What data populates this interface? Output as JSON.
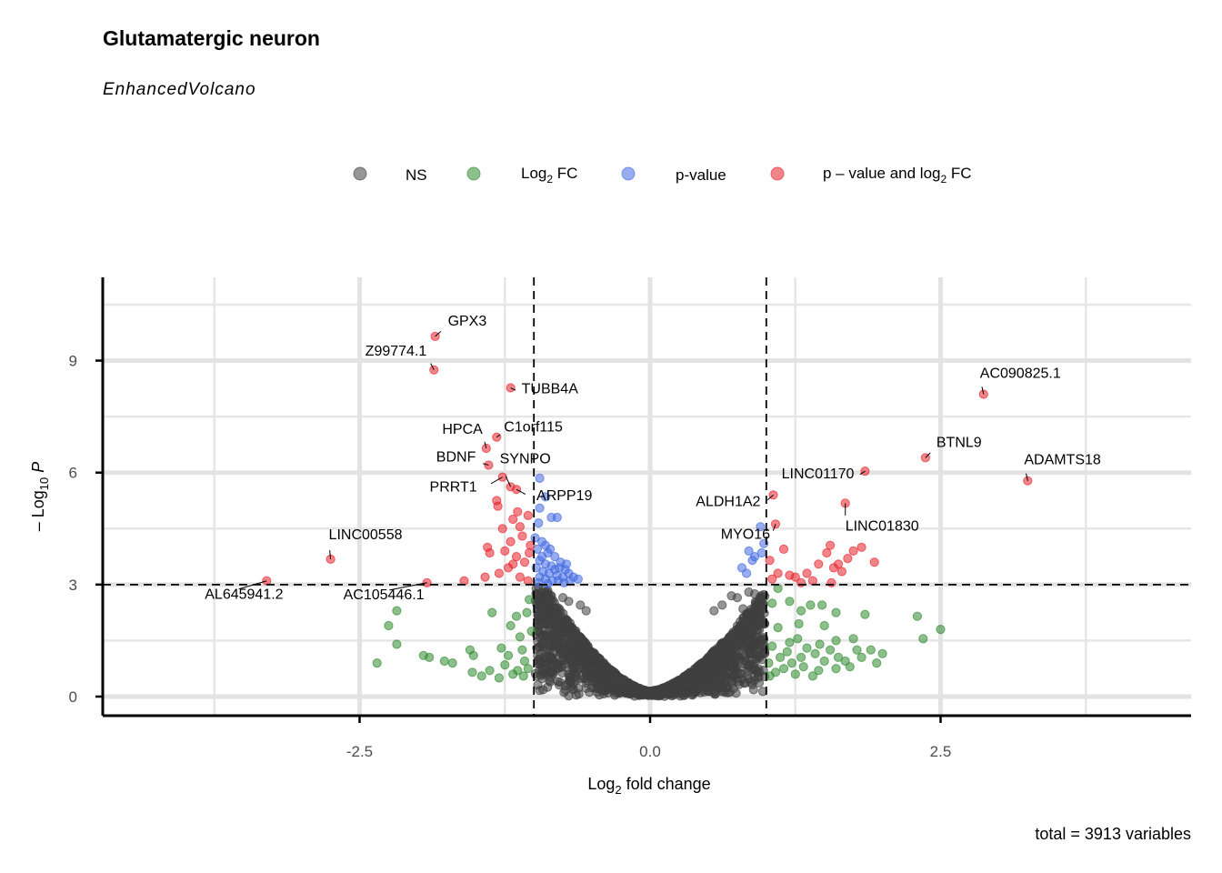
{
  "chart_data": {
    "type": "scatter",
    "title": "Glutamatergic neuron",
    "subtitle": "EnhancedVolcano",
    "xlabel": "Log2 fold change",
    "ylabel": "-Log10 P",
    "caption": "total = 3913 variables",
    "xlim": [
      -4.7,
      4.7
    ],
    "ylim": [
      -0.2,
      11.1
    ],
    "x_ticks": [
      "-2.5",
      "0.0",
      "2.5"
    ],
    "y_ticks": [
      "0",
      "3",
      "6",
      "9"
    ],
    "grid": true,
    "fc_cutoff": 1,
    "p_cutoff_log10": 3,
    "legend_position": "top",
    "legend": [
      {
        "key": "NS",
        "label": "NS",
        "color": "#3f3f3f"
      },
      {
        "key": "FC",
        "label": "Log2 FC",
        "color": "#2e8b2e"
      },
      {
        "key": "P",
        "label": "p-value",
        "color": "#4169e1"
      },
      {
        "key": "P_FC",
        "label": "p – value and log2 FC",
        "color": "#e8202a"
      }
    ],
    "labeled_points": [
      {
        "label": "GPX3",
        "x": -1.85,
        "y": 9.65
      },
      {
        "label": "Z99774.1",
        "x": -1.86,
        "y": 8.75
      },
      {
        "label": "TUBB4A",
        "x": -1.2,
        "y": 8.27
      },
      {
        "label": "C1orf115",
        "x": -1.32,
        "y": 6.95
      },
      {
        "label": "HPCA",
        "x": -1.41,
        "y": 6.65
      },
      {
        "label": "BDNF",
        "x": -1.39,
        "y": 6.2
      },
      {
        "label": "SYNPO",
        "x": -1.2,
        "y": 5.62
      },
      {
        "label": "PRRT1",
        "x": -1.27,
        "y": 5.88
      },
      {
        "label": "ARPP19",
        "x": -1.15,
        "y": 5.55
      },
      {
        "label": "LINC00558",
        "x": -2.75,
        "y": 3.68
      },
      {
        "label": "AL645941.2",
        "x": -3.3,
        "y": 3.1
      },
      {
        "label": "AC105446.1",
        "x": -1.92,
        "y": 3.05
      },
      {
        "label": "AC090825.1",
        "x": 2.87,
        "y": 8.1
      },
      {
        "label": "BTNL9",
        "x": 2.37,
        "y": 6.4
      },
      {
        "label": "ADAMTS18",
        "x": 3.25,
        "y": 5.78
      },
      {
        "label": "LINC01170",
        "x": 1.85,
        "y": 6.04
      },
      {
        "label": "LINC01830",
        "x": 1.68,
        "y": 5.18
      },
      {
        "label": "ALDH1A2",
        "x": 1.06,
        "y": 5.4
      },
      {
        "label": "MYO16",
        "x": 1.08,
        "y": 4.62
      }
    ],
    "series": [
      {
        "name": "p – value and log2 FC",
        "key": "P_FC",
        "points": [
          [
            -1.85,
            9.65
          ],
          [
            -1.86,
            8.75
          ],
          [
            -1.2,
            8.27
          ],
          [
            -1.32,
            6.95
          ],
          [
            -1.41,
            6.65
          ],
          [
            -1.39,
            6.2
          ],
          [
            -1.27,
            5.88
          ],
          [
            -1.2,
            5.62
          ],
          [
            -1.15,
            5.55
          ],
          [
            -2.75,
            3.68
          ],
          [
            -3.3,
            3.1
          ],
          [
            -1.92,
            3.05
          ],
          [
            -1.32,
            5.25
          ],
          [
            -1.31,
            5.1
          ],
          [
            -1.18,
            4.75
          ],
          [
            -1.12,
            4.55
          ],
          [
            -1.05,
            4.85
          ],
          [
            -1.1,
            4.3
          ],
          [
            -1.2,
            4.15
          ],
          [
            -1.4,
            4.0
          ],
          [
            -1.38,
            3.85
          ],
          [
            -1.25,
            3.9
          ],
          [
            -1.15,
            3.75
          ],
          [
            -1.08,
            3.6
          ],
          [
            -1.22,
            3.45
          ],
          [
            -1.3,
            3.3
          ],
          [
            -1.42,
            3.2
          ],
          [
            -1.6,
            3.1
          ],
          [
            -1.12,
            3.2
          ],
          [
            -1.05,
            3.1
          ],
          [
            -1.18,
            3.55
          ],
          [
            -1.27,
            4.5
          ],
          [
            -1.03,
            4.05
          ],
          [
            -1.14,
            4.95
          ],
          [
            -1.04,
            3.85
          ],
          [
            2.87,
            8.1
          ],
          [
            2.37,
            6.4
          ],
          [
            3.25,
            5.78
          ],
          [
            1.85,
            6.04
          ],
          [
            1.68,
            5.18
          ],
          [
            1.06,
            5.4
          ],
          [
            1.08,
            4.62
          ],
          [
            1.03,
            3.65
          ],
          [
            1.15,
            3.95
          ],
          [
            1.1,
            3.3
          ],
          [
            1.2,
            3.25
          ],
          [
            1.35,
            3.3
          ],
          [
            1.45,
            3.55
          ],
          [
            1.52,
            3.85
          ],
          [
            1.55,
            4.05
          ],
          [
            1.62,
            3.55
          ],
          [
            1.7,
            3.7
          ],
          [
            1.75,
            3.9
          ],
          [
            1.82,
            4.0
          ],
          [
            1.93,
            3.6
          ],
          [
            1.58,
            3.45
          ],
          [
            1.4,
            3.1
          ],
          [
            1.05,
            3.15
          ],
          [
            1.25,
            3.2
          ],
          [
            1.65,
            3.35
          ],
          [
            1.3,
            3.05
          ],
          [
            1.56,
            3.05
          ]
        ]
      },
      {
        "name": "p-value",
        "key": "P",
        "points": [
          [
            -0.95,
            5.85
          ],
          [
            -0.9,
            5.35
          ],
          [
            -0.95,
            5.05
          ],
          [
            -0.85,
            4.8
          ],
          [
            -0.8,
            4.8
          ],
          [
            -0.96,
            4.65
          ],
          [
            -0.93,
            4.15
          ],
          [
            -0.9,
            4.05
          ],
          [
            -0.97,
            3.95
          ],
          [
            -0.88,
            3.85
          ],
          [
            -0.82,
            3.75
          ],
          [
            -0.95,
            3.65
          ],
          [
            -0.9,
            3.55
          ],
          [
            -0.85,
            3.5
          ],
          [
            -0.78,
            3.45
          ],
          [
            -0.73,
            3.4
          ],
          [
            -0.98,
            3.45
          ],
          [
            -0.92,
            3.35
          ],
          [
            -0.87,
            3.3
          ],
          [
            -0.8,
            3.25
          ],
          [
            -0.75,
            3.2
          ],
          [
            -0.7,
            3.3
          ],
          [
            -0.66,
            3.2
          ],
          [
            -0.95,
            3.2
          ],
          [
            -0.9,
            3.15
          ],
          [
            -0.84,
            3.1
          ],
          [
            -0.79,
            3.1
          ],
          [
            -0.74,
            3.05
          ],
          [
            -0.69,
            3.1
          ],
          [
            -0.96,
            3.05
          ],
          [
            -0.88,
            3.02
          ],
          [
            -0.82,
            3.4
          ],
          [
            -0.77,
            3.6
          ],
          [
            -0.93,
            3.75
          ],
          [
            -0.99,
            4.25
          ],
          [
            -0.86,
            3.95
          ],
          [
            -0.72,
            3.55
          ],
          [
            -0.62,
            3.15
          ],
          [
            0.95,
            4.55
          ],
          [
            0.98,
            4.1
          ],
          [
            0.85,
            3.9
          ],
          [
            0.9,
            3.75
          ],
          [
            0.88,
            3.65
          ],
          [
            0.79,
            3.45
          ],
          [
            0.83,
            3.3
          ],
          [
            0.96,
            3.85
          ]
        ]
      },
      {
        "name": "Log2 FC",
        "key": "FC",
        "points": [
          [
            -2.18,
            2.3
          ],
          [
            -2.25,
            1.9
          ],
          [
            -2.18,
            1.4
          ],
          [
            -2.35,
            0.9
          ],
          [
            -1.95,
            1.1
          ],
          [
            -1.9,
            1.05
          ],
          [
            -1.77,
            0.95
          ],
          [
            -1.7,
            0.9
          ],
          [
            -1.55,
            1.25
          ],
          [
            -1.52,
            1.1
          ],
          [
            -1.53,
            0.65
          ],
          [
            -1.45,
            0.55
          ],
          [
            -1.38,
            0.7
          ],
          [
            -1.36,
            2.25
          ],
          [
            -1.28,
            1.3
          ],
          [
            -1.25,
            0.85
          ],
          [
            -1.2,
            1.9
          ],
          [
            -1.15,
            2.15
          ],
          [
            -1.12,
            1.6
          ],
          [
            -1.1,
            1.25
          ],
          [
            -1.08,
            0.95
          ],
          [
            -1.05,
            0.75
          ],
          [
            -1.04,
            2.6
          ],
          [
            -1.18,
            0.6
          ],
          [
            -1.3,
            0.5
          ],
          [
            -1.22,
            1.1
          ],
          [
            -1.14,
            0.7
          ],
          [
            -1.02,
            1.75
          ],
          [
            -1.06,
            2.25
          ],
          [
            -1.09,
            0.55
          ],
          [
            1.05,
            2.5
          ],
          [
            1.1,
            2.9
          ],
          [
            1.2,
            2.55
          ],
          [
            1.3,
            2.3
          ],
          [
            1.38,
            2.45
          ],
          [
            1.48,
            2.45
          ],
          [
            1.6,
            2.25
          ],
          [
            1.85,
            2.2
          ],
          [
            2.3,
            2.15
          ],
          [
            2.5,
            1.8
          ],
          [
            2.35,
            1.55
          ],
          [
            1.75,
            1.55
          ],
          [
            1.5,
            1.9
          ],
          [
            1.28,
            1.95
          ],
          [
            1.27,
            1.55
          ],
          [
            1.1,
            1.85
          ],
          [
            1.05,
            1.35
          ],
          [
            1.18,
            1.2
          ],
          [
            1.3,
            1.05
          ],
          [
            1.42,
            1.15
          ],
          [
            1.55,
            1.25
          ],
          [
            1.68,
            0.95
          ],
          [
            1.82,
            1.05
          ],
          [
            1.9,
            1.25
          ],
          [
            1.95,
            0.9
          ],
          [
            2.0,
            1.15
          ],
          [
            1.72,
            0.8
          ],
          [
            1.6,
            0.75
          ],
          [
            1.45,
            0.7
          ],
          [
            1.32,
            0.8
          ],
          [
            1.15,
            0.75
          ],
          [
            1.08,
            0.65
          ],
          [
            1.02,
            0.9
          ],
          [
            1.25,
            0.6
          ],
          [
            1.4,
            0.55
          ],
          [
            1.5,
            0.95
          ],
          [
            1.2,
            1.45
          ],
          [
            1.12,
            1.05
          ],
          [
            1.35,
            1.3
          ],
          [
            1.6,
            1.5
          ],
          [
            1.03,
            0.55
          ],
          [
            1.22,
            0.9
          ],
          [
            1.46,
            1.4
          ],
          [
            1.62,
            1.05
          ],
          [
            1.78,
            1.25
          ]
        ]
      },
      {
        "name": "NS",
        "key": "NS",
        "cloud": {
          "fc_limit": 0.99,
          "p_limit": 2.95,
          "count": 1800
        },
        "points": [
          [
            -0.9,
            2.8
          ],
          [
            -0.85,
            2.7
          ],
          [
            -0.75,
            2.65
          ],
          [
            -0.7,
            2.55
          ],
          [
            -0.95,
            2.4
          ],
          [
            -0.6,
            2.45
          ],
          [
            -0.55,
            2.3
          ],
          [
            0.7,
            2.7
          ],
          [
            0.75,
            2.65
          ],
          [
            0.85,
            2.8
          ],
          [
            0.9,
            2.75
          ],
          [
            0.62,
            2.45
          ],
          [
            0.55,
            2.3
          ],
          [
            0.95,
            2.5
          ],
          [
            0.8,
            2.35
          ]
        ]
      }
    ]
  }
}
